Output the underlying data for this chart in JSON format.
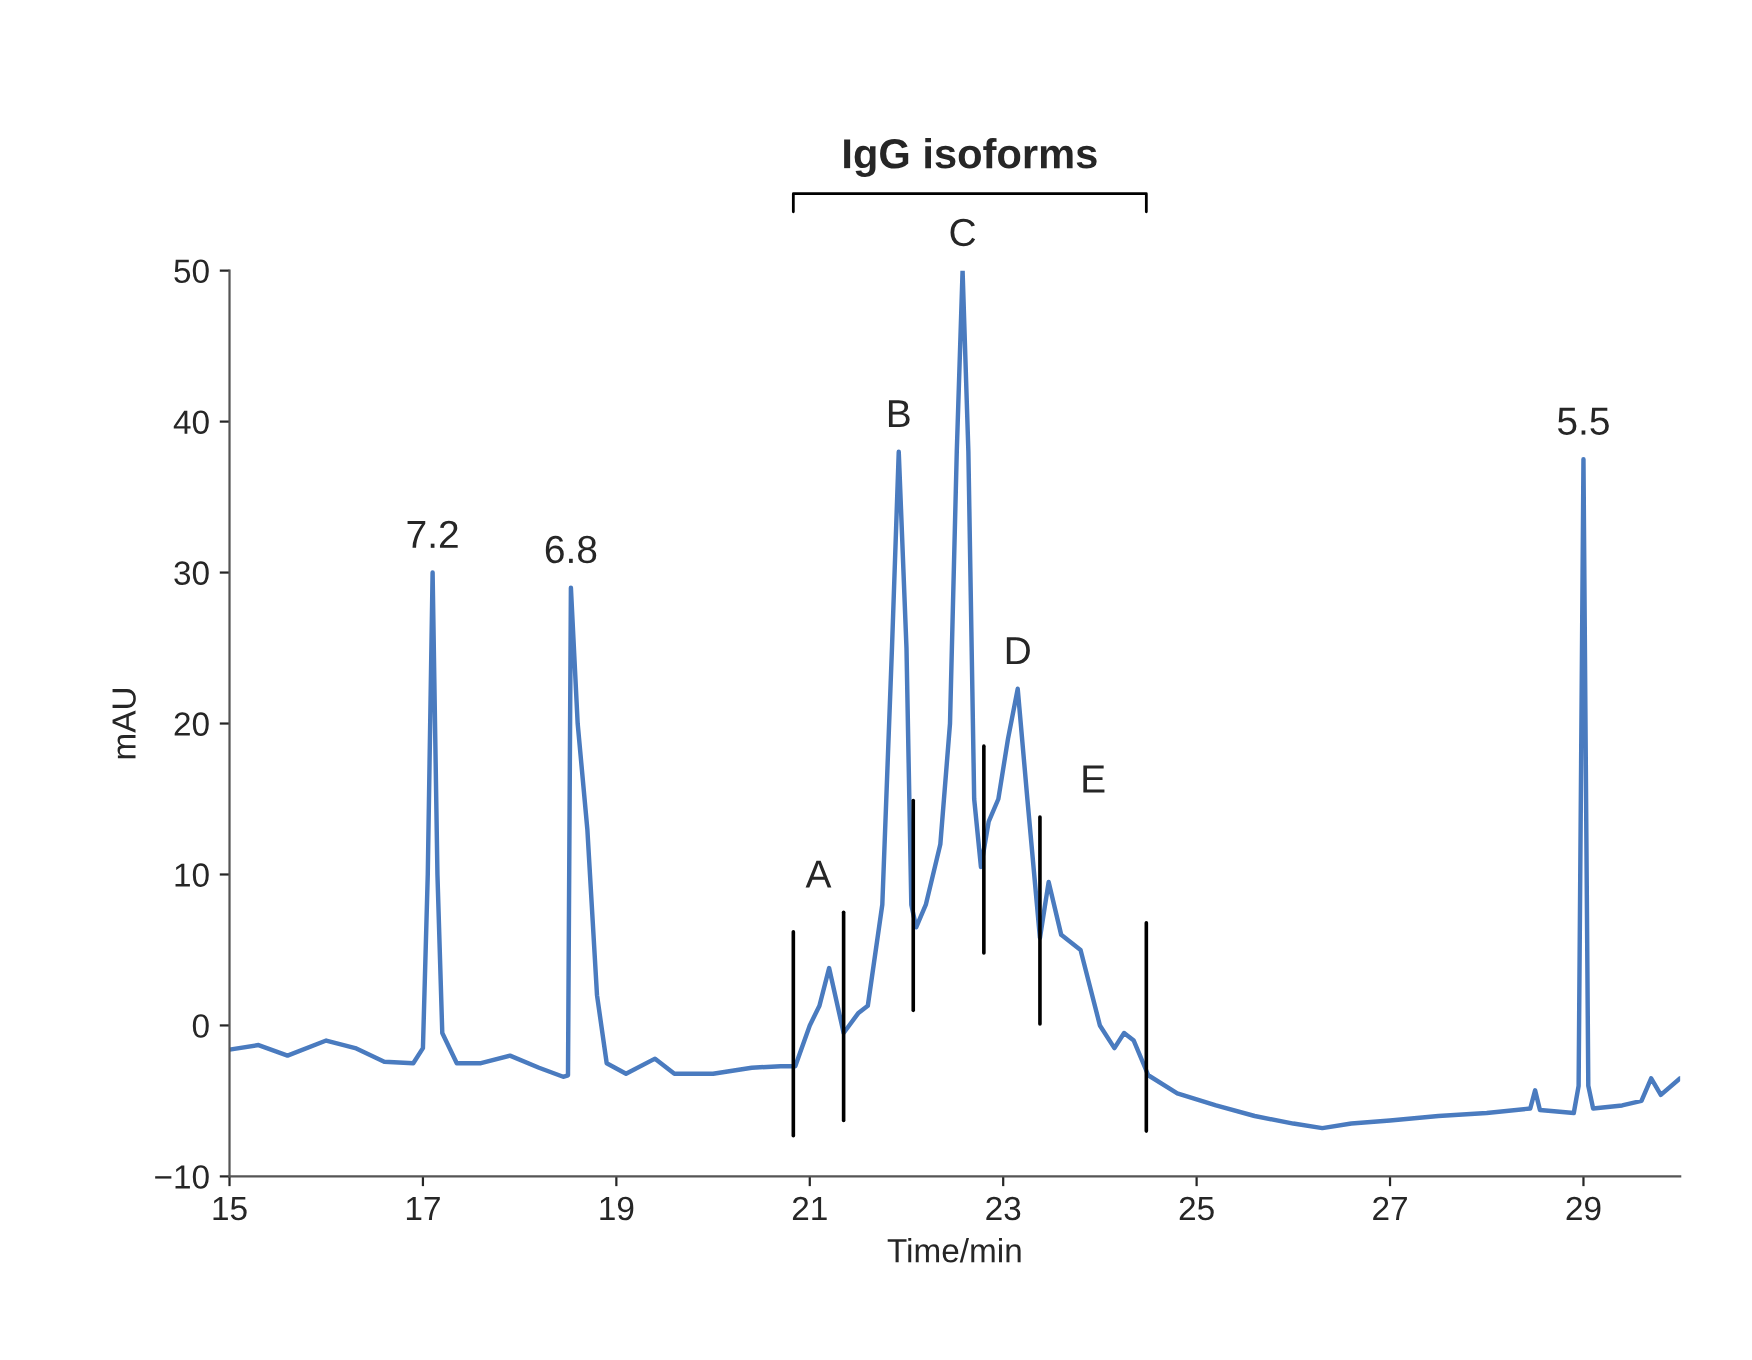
{
  "chart_data": {
    "type": "line",
    "xlabel": "Time/min",
    "ylabel": "mAU",
    "xlim": [
      15,
      30
    ],
    "ylim": [
      -10,
      50
    ],
    "xticks": [
      15,
      17,
      19,
      21,
      23,
      25,
      27,
      29
    ],
    "yticks": [
      {
        "value": -10,
        "label": "−10"
      },
      0,
      10,
      20,
      30,
      40,
      50
    ],
    "grid": false,
    "series": [
      {
        "color": "#4a7bbf",
        "x": [
          15.0,
          15.3,
          15.6,
          16.0,
          16.3,
          16.6,
          16.9,
          17.0,
          17.05,
          17.1,
          17.15,
          17.2,
          17.35,
          17.6,
          17.9,
          18.2,
          18.45,
          18.5,
          18.53,
          18.6,
          18.7,
          18.8,
          18.9,
          19.1,
          19.4,
          19.6,
          20.0,
          20.4,
          20.7,
          20.85,
          21.0,
          21.1,
          21.2,
          21.35,
          21.5,
          21.6,
          21.75,
          21.85,
          21.92,
          22.0,
          22.05,
          22.1,
          22.2,
          22.35,
          22.45,
          22.52,
          22.58,
          22.64,
          22.7,
          22.77,
          22.85,
          22.95,
          23.05,
          23.15,
          23.25,
          23.38,
          23.47,
          23.6,
          23.8,
          24.0,
          24.15,
          24.25,
          24.35,
          24.5,
          24.8,
          25.2,
          25.6,
          26.0,
          26.3,
          26.6,
          27.0,
          27.5,
          28.0,
          28.45,
          28.5,
          28.55,
          28.9,
          28.95,
          29.0,
          29.05,
          29.1,
          29.4,
          29.6,
          29.7,
          29.8,
          30.0
        ],
        "values": [
          -1.6,
          -1.3,
          -2.0,
          -1.0,
          -1.5,
          -2.4,
          -2.5,
          -1.5,
          10,
          30,
          10,
          -0.5,
          -2.5,
          -2.5,
          -2.0,
          -2.8,
          -3.4,
          -3.3,
          29,
          20,
          13,
          2,
          -2.5,
          -3.2,
          -2.2,
          -3.2,
          -3.2,
          -2.8,
          -2.7,
          -2.7,
          0,
          1.3,
          3.8,
          -0.5,
          0.8,
          1.3,
          8,
          25,
          38,
          25,
          8,
          6.5,
          8,
          12,
          20,
          38,
          50,
          38,
          15,
          10.5,
          13.5,
          15,
          19,
          22.3,
          15,
          5.8,
          9.5,
          6,
          5,
          0,
          -1.5,
          -0.5,
          -1,
          -3.3,
          -4.5,
          -5.3,
          -6.0,
          -6.5,
          -6.8,
          -6.5,
          -6.3,
          -6.0,
          -5.8,
          -5.5,
          -4.3,
          -5.6,
          -5.8,
          -4,
          37.5,
          -4,
          -5.5,
          -5.3,
          -5.0,
          -3.5,
          -4.6,
          -3.5
        ]
      },
      {
        "color": "#000000",
        "x": [
          20.83,
          20.83
        ],
        "values": [
          6.2,
          -7.3
        ]
      },
      {
        "color": "#000000",
        "x": [
          21.35,
          21.35
        ],
        "values": [
          7.5,
          -6.3
        ]
      },
      {
        "color": "#000000",
        "x": [
          22.07,
          22.07
        ],
        "values": [
          14.9,
          1.0
        ]
      },
      {
        "color": "#000000",
        "x": [
          22.8,
          22.8
        ],
        "values": [
          18.5,
          4.8
        ]
      },
      {
        "color": "#000000",
        "x": [
          23.38,
          23.38
        ],
        "values": [
          13.8,
          0.1
        ]
      },
      {
        "color": "#000000",
        "x": [
          24.48,
          24.48
        ],
        "values": [
          6.8,
          -7.0
        ]
      }
    ],
    "annotations": [
      "IgG isoforms",
      {
        "text": "7.2",
        "x": 17.1,
        "y": 30
      },
      {
        "text": "6.8",
        "x": 18.53,
        "y": 29
      },
      {
        "text": "5.5",
        "x": 29.0,
        "y": 37.5
      },
      "A",
      {
        "text": "B",
        "x": 21.92,
        "y": 38
      },
      {
        "text": "C",
        "x": 22.58,
        "y": 50
      },
      {
        "text": "D",
        "x": 23.15,
        "y": 22.3
      },
      "E"
    ]
  }
}
